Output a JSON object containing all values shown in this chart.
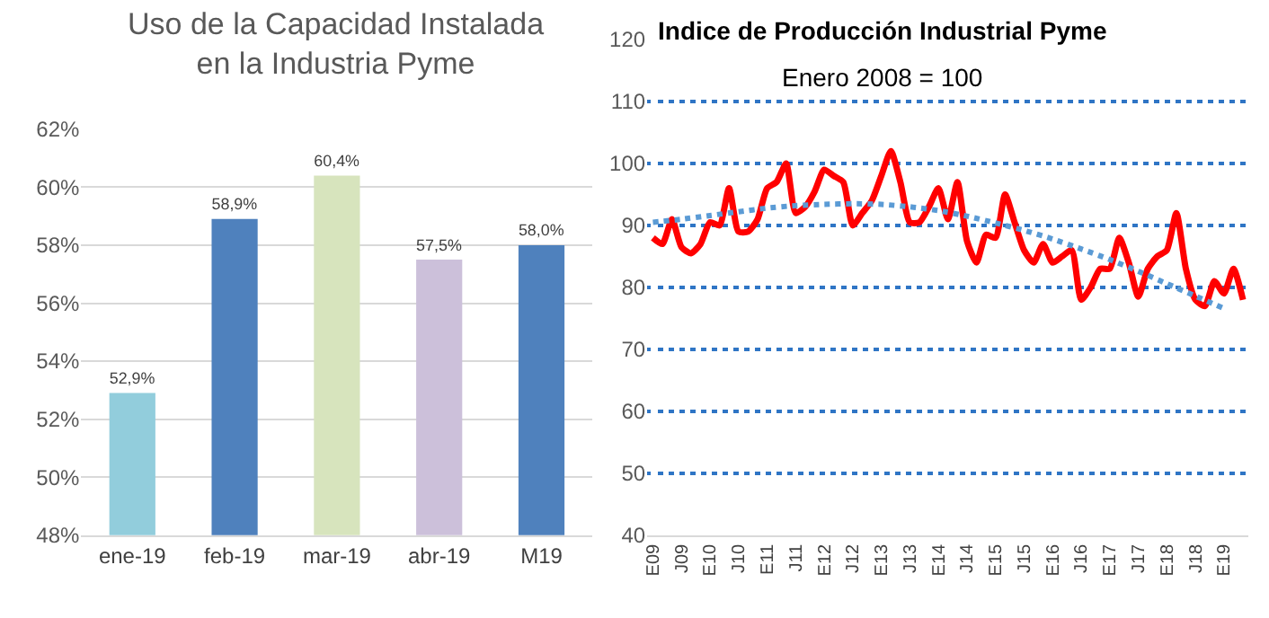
{
  "chart_data": [
    {
      "type": "bar",
      "title": "Uso de la Capacidad Instalada\nen la Industria Pyme",
      "categories": [
        "ene-19",
        "feb-19",
        "mar-19",
        "abr-19",
        "M19"
      ],
      "values": [
        52.9,
        58.9,
        60.4,
        57.5,
        58.0
      ],
      "colors": [
        "#92cddc",
        "#4f81bd",
        "#d7e4bd",
        "#ccc0da",
        "#4f81bd"
      ],
      "value_labels": [
        "52,9%",
        "58,9%",
        "60,4%",
        "57,5%",
        "58,0%"
      ],
      "ylim": [
        48,
        62
      ],
      "yticks": [
        {
          "value": 48,
          "label": "48%"
        },
        {
          "value": 50,
          "label": "50%"
        },
        {
          "value": 52,
          "label": "52%"
        },
        {
          "value": 54,
          "label": "54%"
        },
        {
          "value": 56,
          "label": "56%"
        },
        {
          "value": 58,
          "label": "58%"
        },
        {
          "value": 60,
          "label": "60%"
        },
        {
          "value": 62,
          "label": "62%"
        }
      ],
      "grid": "y"
    },
    {
      "type": "line",
      "title": "Indice de Producción Industrial Pyme",
      "subtitle": "Enero 2008 = 100",
      "categories": [
        "E09",
        null,
        null,
        "J09",
        null,
        null,
        "E10",
        null,
        null,
        "J10",
        null,
        null,
        "E11",
        null,
        null,
        "J11",
        null,
        null,
        "E12",
        null,
        null,
        "J12",
        null,
        null,
        "E13",
        null,
        null,
        "J13",
        null,
        null,
        "E14",
        null,
        null,
        "J14",
        null,
        null,
        "E15",
        null,
        null,
        "J15",
        null,
        null,
        "E16",
        null,
        null,
        "J16",
        null,
        null,
        "E17",
        null,
        null,
        "J17",
        null,
        null,
        "E18",
        null,
        null,
        "J18",
        null,
        null,
        "E19",
        null,
        null
      ],
      "series": [
        {
          "color": "#ff0000",
          "values": [
            88,
            87,
            91,
            86.5,
            85.5,
            87,
            90.5,
            90,
            96,
            89,
            89,
            91,
            96,
            97,
            100,
            92,
            93,
            95.5,
            99,
            98,
            97,
            90,
            92,
            94,
            98,
            102,
            97,
            90.5,
            90.5,
            93,
            96,
            91,
            97,
            87.5,
            84,
            88.5,
            88,
            95,
            90.5,
            86,
            84,
            87,
            84,
            85,
            86,
            78,
            80,
            83,
            83,
            88,
            84,
            78.5,
            83,
            85,
            86,
            92,
            83,
            78,
            77,
            81,
            79,
            83,
            78
          ]
        },
        {
          "color": "#5b9bd5",
          "type": "line",
          "line_style": "dotted",
          "x": [
            "E09",
            "J09",
            "E10",
            "J10",
            "E11",
            "J11",
            "E12",
            "J12",
            "E13",
            "J13",
            "E14",
            "J14",
            "E15",
            "J15",
            "E16",
            "J16",
            "E17",
            "J17",
            "E18",
            "J18",
            "E19"
          ],
          "values": [
            90.5,
            91,
            91.6,
            92.2,
            92.8,
            93.2,
            93.4,
            93.5,
            93.4,
            93,
            92.4,
            91.5,
            90.4,
            89.2,
            87.8,
            86.2,
            84.5,
            82.6,
            80.6,
            78.6,
            76.6
          ]
        }
      ],
      "ylim": [
        40,
        120
      ],
      "yticks": [
        40,
        50,
        60,
        70,
        80,
        90,
        100,
        110,
        120
      ],
      "grid": "y",
      "marker": "none",
      "line_style": "solid"
    }
  ]
}
